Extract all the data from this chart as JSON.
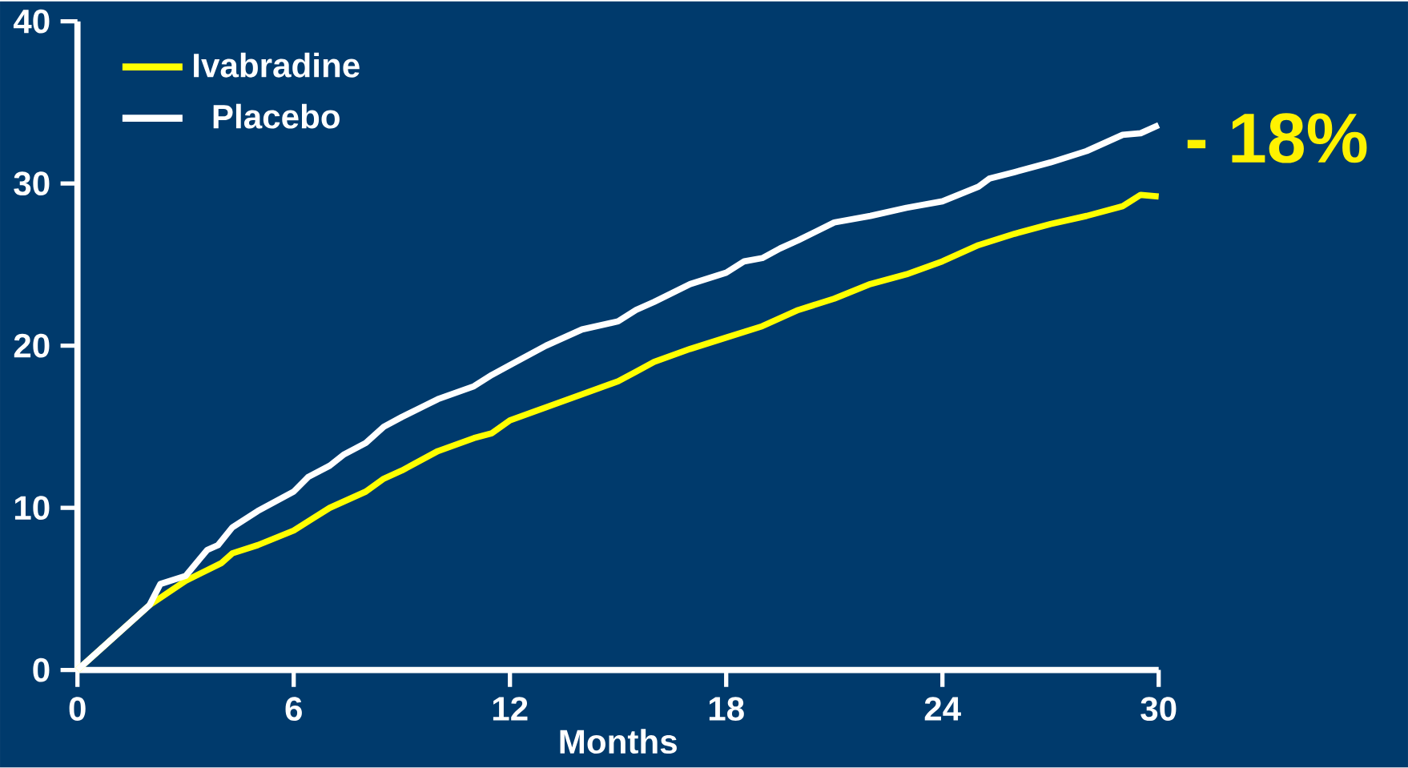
{
  "chart_data": {
    "type": "line",
    "xlabel": "Months",
    "xlim": [
      0,
      30
    ],
    "ylim": [
      0,
      40
    ],
    "xticks": [
      0,
      6,
      12,
      18,
      24,
      30
    ],
    "yticks": [
      0,
      10,
      20,
      30,
      40
    ],
    "legend": "top left",
    "annotations": [
      "- 18%"
    ],
    "series": [
      {
        "name": "Ivabradine",
        "color": "#ffff00",
        "x": [
          0,
          2,
          3,
          4,
          4.3,
          5,
          6,
          6.5,
          7,
          8,
          8.5,
          9,
          10,
          11,
          11.5,
          12,
          13,
          14,
          15,
          15.5,
          16,
          17,
          18,
          19,
          20,
          21,
          22,
          23,
          24,
          25,
          26,
          27,
          28,
          29,
          29.5,
          30
        ],
        "values": [
          0,
          4.0,
          5.5,
          6.6,
          7.2,
          7.7,
          8.6,
          9.3,
          10,
          11,
          11.8,
          12.3,
          13.5,
          14.3,
          14.6,
          15.4,
          16.2,
          17,
          17.8,
          18.4,
          19,
          19.8,
          20.5,
          21.2,
          22.2,
          22.9,
          23.8,
          24.4,
          25.2,
          26.2,
          26.9,
          27.5,
          28,
          28.6,
          29.3,
          29.2
        ]
      },
      {
        "name": "Placebo",
        "color": "#ffffff",
        "x": [
          0,
          2,
          2.3,
          3,
          3.6,
          3.9,
          4.3,
          5,
          6,
          6.4,
          7,
          7.4,
          8,
          8.5,
          9,
          10,
          11,
          11.5,
          12,
          13,
          14,
          15,
          15.5,
          16,
          17,
          18,
          18.5,
          19,
          19.5,
          20,
          21,
          22,
          23,
          24,
          25,
          25.3,
          26,
          27,
          28,
          29,
          29.5,
          30
        ],
        "values": [
          0,
          4.0,
          5.3,
          5.8,
          7.4,
          7.7,
          8.8,
          9.8,
          11,
          11.9,
          12.6,
          13.3,
          14,
          15,
          15.6,
          16.7,
          17.5,
          18.2,
          18.8,
          20,
          21,
          21.5,
          22.2,
          22.7,
          23.8,
          24.5,
          25.2,
          25.4,
          26,
          26.5,
          27.6,
          28,
          28.5,
          28.9,
          29.8,
          30.3,
          30.7,
          31.3,
          32,
          33,
          33.1,
          33.6
        ]
      }
    ]
  }
}
